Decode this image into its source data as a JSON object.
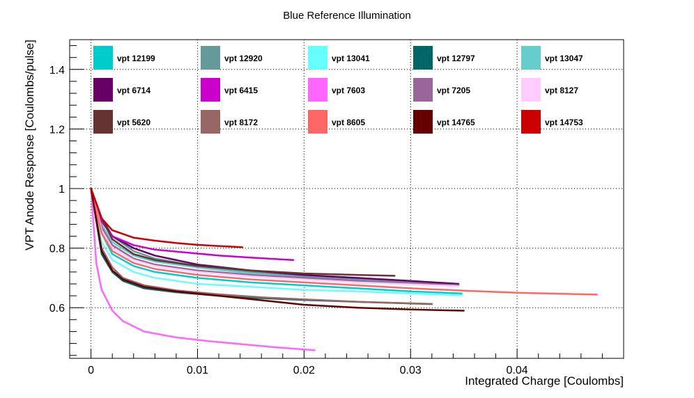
{
  "chart_data": {
    "type": "line",
    "title": "Blue Reference Illumination",
    "xlabel": "Integrated Charge [Coulombs]",
    "ylabel": "VPT Anode Response [Coulombs/pulse]",
    "xlim": [
      -0.002,
      0.05
    ],
    "ylim": [
      0.43,
      1.5
    ],
    "x_ticks": [
      0,
      0.01,
      0.02,
      0.03,
      0.04
    ],
    "x_tick_labels": [
      "0",
      "0.01",
      "0.02",
      "0.03",
      "0.04"
    ],
    "y_ticks": [
      0.6,
      0.8,
      1,
      1.2,
      1.4
    ],
    "y_tick_labels": [
      "0.6",
      "0.8",
      "1",
      "1.2",
      "1.4"
    ],
    "grid": true,
    "legend_placement": "top, inside plot, 5 columns",
    "series": [
      {
        "name": "vpt 12199",
        "color": "#00CCCC",
        "x": [
          0,
          0.001,
          0.002,
          0.004,
          0.006,
          0.01,
          0.015,
          0.02,
          0.025,
          0.03,
          0.0348
        ],
        "y": [
          1.0,
          0.85,
          0.78,
          0.74,
          0.72,
          0.7,
          0.685,
          0.675,
          0.665,
          0.655,
          0.648
        ]
      },
      {
        "name": "vpt 12920",
        "color": "#669999",
        "x": [
          0,
          0.001,
          0.002,
          0.004,
          0.006,
          0.01,
          0.015,
          0.02,
          0.025,
          0.03,
          0.0345
        ],
        "y": [
          1.0,
          0.9,
          0.84,
          0.79,
          0.765,
          0.74,
          0.72,
          0.705,
          0.695,
          0.685,
          0.68
        ]
      },
      {
        "name": "vpt 13041",
        "color": "#66FFFF",
        "x": [
          0,
          0.001,
          0.002,
          0.004,
          0.006,
          0.01,
          0.015,
          0.02,
          0.025,
          0.03,
          0.0348
        ],
        "y": [
          1.0,
          0.82,
          0.76,
          0.72,
          0.7,
          0.68,
          0.67,
          0.66,
          0.655,
          0.648,
          0.642
        ]
      },
      {
        "name": "vpt 12797",
        "color": "#006666",
        "x": [
          0,
          0.001,
          0.002,
          0.003,
          0.005,
          0.008,
          0.012,
          0.016,
          0.02,
          0.025,
          0.032
        ],
        "y": [
          1.0,
          0.78,
          0.72,
          0.69,
          0.665,
          0.652,
          0.64,
          0.632,
          0.626,
          0.62,
          0.612
        ]
      },
      {
        "name": "vpt 13047",
        "color": "#66CCCC",
        "x": [
          0,
          0.001,
          0.002,
          0.004,
          0.006,
          0.01,
          0.015,
          0.02,
          0.025,
          0.03,
          0.0345
        ],
        "y": [
          1.0,
          0.88,
          0.82,
          0.775,
          0.755,
          0.735,
          0.715,
          0.7,
          0.69,
          0.682,
          0.677
        ]
      },
      {
        "name": "vpt 6714",
        "color": "#660066",
        "x": [
          0,
          0.001,
          0.002,
          0.004,
          0.006,
          0.01,
          0.015,
          0.02,
          0.025,
          0.03,
          0.0345
        ],
        "y": [
          1.0,
          0.9,
          0.84,
          0.8,
          0.775,
          0.745,
          0.725,
          0.71,
          0.7,
          0.69,
          0.68
        ]
      },
      {
        "name": "vpt 6415",
        "color": "#CC00CC",
        "x": [
          0,
          0.001,
          0.002,
          0.004,
          0.006,
          0.009,
          0.012,
          0.015,
          0.019
        ],
        "y": [
          1.0,
          0.89,
          0.84,
          0.81,
          0.795,
          0.785,
          0.775,
          0.768,
          0.76
        ]
      },
      {
        "name": "vpt 7603",
        "color": "#FF66FF",
        "x": [
          0,
          0.0005,
          0.001,
          0.002,
          0.003,
          0.005,
          0.008,
          0.011,
          0.014,
          0.017,
          0.021
        ],
        "y": [
          1.0,
          0.75,
          0.66,
          0.59,
          0.555,
          0.52,
          0.5,
          0.488,
          0.478,
          0.468,
          0.457
        ]
      },
      {
        "name": "vpt 7205",
        "color": "#996699",
        "x": [
          0,
          0.001,
          0.002,
          0.004,
          0.006,
          0.01,
          0.015,
          0.02,
          0.025,
          0.03,
          0.0345
        ],
        "y": [
          1.0,
          0.87,
          0.81,
          0.765,
          0.745,
          0.725,
          0.71,
          0.7,
          0.69,
          0.682,
          0.676
        ]
      },
      {
        "name": "vpt 8127",
        "color": "#FFCCFF",
        "x": [
          0,
          0.001,
          0.002,
          0.004,
          0.006,
          0.01,
          0.015,
          0.02,
          0.025,
          0.03,
          0.0345
        ],
        "y": [
          1.0,
          0.86,
          0.8,
          0.76,
          0.74,
          0.72,
          0.705,
          0.695,
          0.685,
          0.678,
          0.672
        ]
      },
      {
        "name": "vpt 5620",
        "color": "#663333",
        "x": [
          0,
          0.001,
          0.002,
          0.004,
          0.006,
          0.01,
          0.015,
          0.02,
          0.025,
          0.0285
        ],
        "y": [
          1.0,
          0.9,
          0.83,
          0.78,
          0.76,
          0.74,
          0.725,
          0.715,
          0.71,
          0.707
        ]
      },
      {
        "name": "vpt 8172",
        "color": "#996666",
        "x": [
          0,
          0.001,
          0.002,
          0.003,
          0.005,
          0.008,
          0.012,
          0.016,
          0.02,
          0.025,
          0.032
        ],
        "y": [
          1.0,
          0.8,
          0.735,
          0.7,
          0.675,
          0.658,
          0.645,
          0.635,
          0.628,
          0.62,
          0.613
        ]
      },
      {
        "name": "vpt 8605",
        "color": "#FF6666",
        "x": [
          0,
          0.001,
          0.002,
          0.004,
          0.006,
          0.01,
          0.015,
          0.02,
          0.025,
          0.03,
          0.035,
          0.04,
          0.0475
        ],
        "y": [
          1.0,
          0.85,
          0.79,
          0.75,
          0.73,
          0.71,
          0.695,
          0.685,
          0.675,
          0.665,
          0.657,
          0.65,
          0.644
        ]
      },
      {
        "name": "vpt 14765",
        "color": "#660000",
        "x": [
          0,
          0.001,
          0.002,
          0.003,
          0.005,
          0.008,
          0.012,
          0.016,
          0.02,
          0.025,
          0.03,
          0.035
        ],
        "y": [
          1.0,
          0.79,
          0.725,
          0.695,
          0.67,
          0.655,
          0.64,
          0.625,
          0.61,
          0.6,
          0.594,
          0.59
        ]
      },
      {
        "name": "vpt 14753",
        "color": "#CC0000",
        "x": [
          0,
          0.001,
          0.002,
          0.004,
          0.006,
          0.008,
          0.01,
          0.012,
          0.0142
        ],
        "y": [
          1.0,
          0.9,
          0.86,
          0.835,
          0.825,
          0.817,
          0.811,
          0.807,
          0.803
        ]
      }
    ]
  }
}
